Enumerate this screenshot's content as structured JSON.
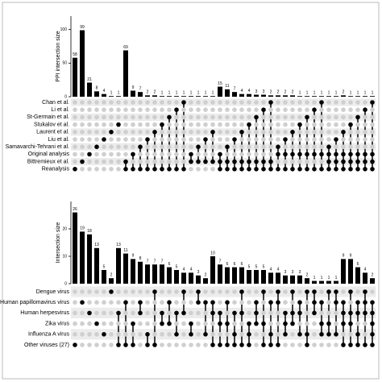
{
  "chart_data": [
    {
      "type": "upset",
      "ylabel": "PPI intersection size",
      "ylim": [
        0,
        120
      ],
      "yticks": [
        0,
        50,
        100
      ],
      "sets": [
        "Chan et al.",
        "Li et al.",
        "St-Germain et al.",
        "Stukalov et al.",
        "Laurent et al.",
        "Liu et al.",
        "Samavarchi-Tehrani et al.",
        "Original analysis",
        "Bittremieux et al.",
        "Reanalysis"
      ],
      "values": [
        58,
        99,
        21,
        8,
        4,
        1,
        1,
        69,
        9,
        7,
        2,
        2,
        1,
        1,
        1,
        1,
        1,
        1,
        1,
        1,
        15,
        11,
        7,
        4,
        4,
        3,
        3,
        2,
        2,
        2,
        2,
        1,
        1,
        1,
        1,
        1,
        1,
        2,
        1,
        1,
        1,
        1
      ],
      "intersections": [
        [
          9
        ],
        [
          8
        ],
        [
          7
        ],
        [
          6
        ],
        [
          5
        ],
        [
          4
        ],
        [
          3
        ],
        [
          8,
          9
        ],
        [
          7,
          9
        ],
        [
          6,
          9
        ],
        [
          5,
          9
        ],
        [
          4,
          9
        ],
        [
          3,
          9
        ],
        [
          2,
          9
        ],
        [
          1,
          9
        ],
        [
          0,
          9
        ],
        [
          7,
          8
        ],
        [
          6,
          8
        ],
        [
          5,
          8
        ],
        [
          4,
          8
        ],
        [
          7,
          8,
          9
        ],
        [
          6,
          8,
          9
        ],
        [
          5,
          8,
          9
        ],
        [
          4,
          8,
          9
        ],
        [
          3,
          8,
          9
        ],
        [
          2,
          8,
          9
        ],
        [
          1,
          8,
          9
        ],
        [
          0,
          8,
          9
        ],
        [
          6,
          7,
          9
        ],
        [
          5,
          7,
          9
        ],
        [
          4,
          7,
          9
        ],
        [
          3,
          7,
          9
        ],
        [
          2,
          7,
          9
        ],
        [
          1,
          7,
          9
        ],
        [
          0,
          7,
          9
        ],
        [
          6,
          7,
          8,
          9
        ],
        [
          5,
          7,
          8,
          9
        ],
        [
          4,
          7,
          8,
          9
        ],
        [
          3,
          7,
          8,
          9
        ],
        [
          2,
          7,
          8,
          9
        ],
        [
          1,
          7,
          8,
          9
        ],
        [
          0,
          7,
          8,
          9
        ]
      ],
      "color": "#000000"
    },
    {
      "type": "upset",
      "ylabel": "Intersection size",
      "ylim": [
        0,
        30
      ],
      "yticks": [
        0,
        10,
        20
      ],
      "sets": [
        "Dengue virus",
        "Human papillomavirus virus",
        "Human herpesvirus",
        "Zika virus",
        "Influenza A virus",
        "Other viruses (27)"
      ],
      "values": [
        26,
        19,
        18,
        13,
        5,
        2,
        13,
        11,
        9,
        8,
        7,
        7,
        7,
        6,
        5,
        4,
        4,
        3,
        2,
        10,
        7,
        6,
        6,
        6,
        5,
        5,
        5,
        4,
        4,
        3,
        3,
        3,
        2,
        1,
        1,
        1,
        1,
        9,
        9,
        6,
        4,
        2
      ],
      "intersections": [
        [
          5
        ],
        [
          1
        ],
        [
          2
        ],
        [
          3
        ],
        [
          4
        ],
        [
          0
        ],
        [
          2,
          5
        ],
        [
          1,
          5
        ],
        [
          3,
          5
        ],
        [
          1,
          2
        ],
        [
          4,
          5
        ],
        [
          0,
          5
        ],
        [
          2,
          3
        ],
        [
          1,
          3
        ],
        [
          2,
          4
        ],
        [
          0,
          2
        ],
        [
          3,
          4
        ],
        [
          0,
          1
        ],
        [
          1,
          4
        ],
        [
          1,
          2,
          5
        ],
        [
          2,
          3,
          5
        ],
        [
          1,
          3,
          5
        ],
        [
          2,
          4,
          5
        ],
        [
          0,
          2,
          5
        ],
        [
          3,
          4,
          5
        ],
        [
          1,
          2,
          3
        ],
        [
          0,
          3,
          5
        ],
        [
          1,
          4,
          5
        ],
        [
          0,
          1,
          5
        ],
        [
          2,
          3,
          4
        ],
        [
          0,
          2,
          3
        ],
        [
          1,
          2,
          4
        ],
        [
          0,
          4,
          5
        ],
        [
          0,
          1,
          2
        ],
        [
          1,
          3,
          4
        ],
        [
          0,
          3,
          4
        ],
        [
          0,
          1,
          4
        ],
        [
          1,
          2,
          3,
          5
        ],
        [
          0,
          2,
          3,
          5
        ],
        [
          1,
          2,
          4,
          5
        ],
        [
          0,
          1,
          2,
          5
        ],
        [
          1,
          2,
          3,
          4,
          5
        ]
      ],
      "color": "#000000"
    }
  ]
}
